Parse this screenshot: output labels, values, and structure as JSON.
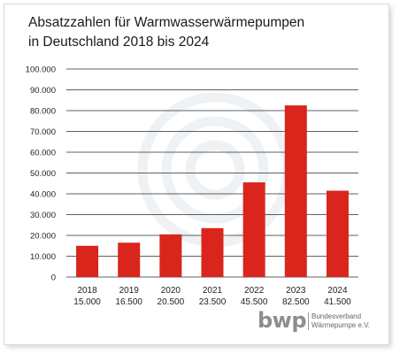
{
  "header": {
    "title_line1": "Absatzzahlen für Warmwasserwärmepumpen",
    "title_line2": "in Deutschland 2018 bis 2024"
  },
  "chart_data": {
    "type": "bar",
    "title": "Absatzzahlen für Warmwasserwärmepumpen in Deutschland 2018 bis 2024",
    "categories": [
      "2018",
      "2019",
      "2020",
      "2021",
      "2022",
      "2023",
      "2024"
    ],
    "value_labels": [
      "15.000",
      "16.500",
      "20.500",
      "23.500",
      "45.500",
      "82.500",
      "41.500"
    ],
    "values": [
      15000,
      16500,
      20500,
      23500,
      45500,
      82500,
      41500
    ],
    "ylim": [
      0,
      100000
    ],
    "yticks": [
      0,
      10000,
      20000,
      30000,
      40000,
      50000,
      60000,
      70000,
      80000,
      90000,
      100000
    ],
    "ytick_labels": [
      "0",
      "10.000",
      "20.000",
      "30.000",
      "40.000",
      "50.000",
      "60.000",
      "70.000",
      "80.000",
      "90.000",
      "100.000"
    ],
    "xlabel": "",
    "ylabel": "",
    "grid": "horizontal",
    "bar_color": "#d9251c"
  },
  "logo": {
    "mark": "bwp",
    "line1": "Bundesverband",
    "line2": "Wärmepumpe e.V."
  }
}
